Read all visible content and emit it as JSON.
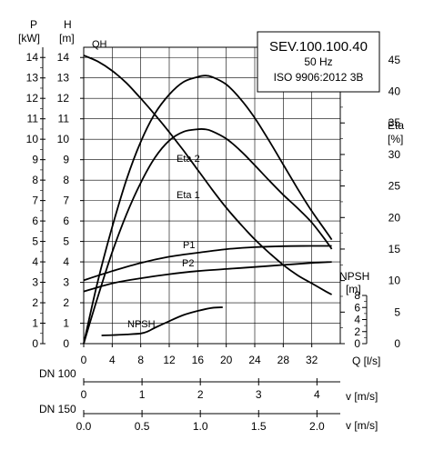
{
  "chart_data": {
    "type": "line",
    "info_box": {
      "model": "SEV.100.100.40",
      "frequency": "50 Hz",
      "standard": "ISO 9906:2012 3B"
    },
    "axes": {
      "p_label": "P",
      "p_unit": "[kW]",
      "h_label": "H",
      "h_unit": "[m]",
      "eta_label": "Eta",
      "eta_unit": "[%]",
      "npsh_label": "NPSH",
      "npsh_unit": "[m]",
      "q_label": "Q [l/s]",
      "dn100_label": "DN 100",
      "dn150_label": "DN 150",
      "v100_label": "v [m/s]",
      "v150_label": "v [m/s]"
    },
    "h_ticks": [
      "0",
      "1",
      "2",
      "3",
      "4",
      "5",
      "6",
      "7",
      "8",
      "9",
      "10",
      "11",
      "12",
      "13",
      "14"
    ],
    "eta_ticks": [
      "0",
      "5",
      "10",
      "15",
      "20",
      "25",
      "30",
      "35",
      "40",
      "45"
    ],
    "npsh_ticks": [
      "0",
      "2",
      "4",
      "6",
      "8"
    ],
    "q_ticks": [
      "0",
      "4",
      "8",
      "12",
      "16",
      "20",
      "24",
      "28",
      "32"
    ],
    "v100_ticks": [
      "0",
      "1",
      "2",
      "3",
      "4"
    ],
    "v150_ticks": [
      "0.0",
      "0.5",
      "1.0",
      "1.5",
      "2.0"
    ],
    "xlim": [
      0,
      36
    ],
    "ylim_h": [
      0,
      14.5
    ],
    "ylim_eta": [
      0,
      47
    ],
    "ylim_p": [
      0,
      14.5
    ],
    "ylim_npsh": [
      0,
      8
    ],
    "series": [
      {
        "name": "QH",
        "axis": "h",
        "color": "#000000",
        "x": [
          0,
          2,
          4,
          6,
          8,
          10,
          12,
          14,
          16,
          18,
          20,
          22,
          24,
          26,
          28,
          30,
          32,
          34,
          34.8
        ],
        "y": [
          14.1,
          13.8,
          13.35,
          12.75,
          12.0,
          11.2,
          10.35,
          9.45,
          8.5,
          7.55,
          6.65,
          5.85,
          5.1,
          4.45,
          3.85,
          3.35,
          2.95,
          2.55,
          2.4
        ]
      },
      {
        "name": "Eta 2",
        "axis": "eta",
        "color": "#000000",
        "x": [
          0,
          2,
          4,
          6,
          8,
          10,
          12,
          14,
          16,
          17,
          18,
          20,
          22,
          24,
          26,
          28,
          30,
          32,
          34,
          34.8
        ],
        "y": [
          0,
          10,
          18.5,
          26,
          32,
          36.5,
          39.5,
          41.5,
          42.3,
          42.5,
          42.3,
          41.1,
          38.8,
          35.8,
          32.2,
          28.4,
          24.6,
          21.0,
          17.8,
          16.5
        ]
      },
      {
        "name": "Eta 1",
        "axis": "eta",
        "color": "#000000",
        "x": [
          0,
          2,
          4,
          6,
          8,
          10,
          12,
          14,
          16,
          17,
          18,
          20,
          22,
          24,
          26,
          28,
          30,
          32,
          34,
          34.8
        ],
        "y": [
          0,
          7.5,
          14.5,
          20.5,
          25.5,
          29.5,
          32.2,
          33.6,
          34.0,
          34.0,
          33.7,
          32.5,
          30.6,
          28.3,
          25.9,
          23.6,
          21.5,
          19.2,
          16.3,
          15.0
        ]
      },
      {
        "name": "P1",
        "axis": "p",
        "color": "#000000",
        "x": [
          0,
          4,
          8,
          12,
          16,
          20,
          24,
          28,
          32,
          34.8
        ],
        "y": [
          3.1,
          3.55,
          3.95,
          4.25,
          4.45,
          4.62,
          4.72,
          4.77,
          4.78,
          4.78
        ]
      },
      {
        "name": "P2",
        "axis": "p",
        "color": "#000000",
        "x": [
          0,
          4,
          8,
          12,
          16,
          20,
          24,
          28,
          32,
          34.8
        ],
        "y": [
          2.55,
          2.95,
          3.2,
          3.4,
          3.55,
          3.65,
          3.75,
          3.85,
          3.95,
          4.0
        ]
      },
      {
        "name": "NPSH",
        "axis": "npsh",
        "color": "#000000",
        "x": [
          2.5,
          4,
          6,
          8,
          9,
          10,
          12,
          14,
          16,
          18,
          19.5
        ],
        "y": [
          0.4,
          0.42,
          0.45,
          0.5,
          0.6,
          0.78,
          1.1,
          1.4,
          1.6,
          1.75,
          1.78
        ]
      }
    ]
  }
}
